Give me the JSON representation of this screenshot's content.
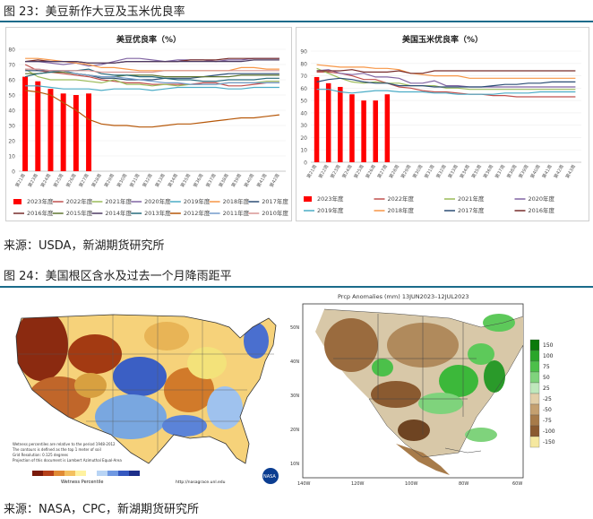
{
  "fig23": {
    "caption": "图 23：美豆新作大豆及玉米优良率",
    "source": "来源：USDA，新湖期货研究所"
  },
  "fig24": {
    "caption": "图 24：美国根区含水及过去一个月降雨距平",
    "source": "来源：NASA，CPC，新湖期货研究所"
  },
  "chart_data": [
    {
      "type": "bar+line",
      "title": "美豆优良率（%）",
      "ylim": [
        0,
        80
      ],
      "yticks": [
        "0",
        "10",
        "20",
        "30",
        "40",
        "50",
        "60",
        "70",
        "80"
      ],
      "categories": [
        "第21周",
        "第23周",
        "第24周",
        "第25周",
        "第26周",
        "第27周",
        "第28周",
        "第29周",
        "第30周",
        "第31周",
        "第32周",
        "第33周",
        "第34周",
        "第35周",
        "第36周",
        "第37周",
        "第38周",
        "第39周",
        "第40周",
        "第41周",
        "第42周"
      ],
      "bars": {
        "name": "2023年度",
        "color": "#ff0000",
        "values": [
          62,
          59,
          54,
          51,
          50,
          51
        ]
      },
      "series": [
        {
          "name": "2022年度",
          "color": "#c0504d",
          "values": [
            70,
            66,
            65,
            64,
            63,
            62,
            60,
            59,
            58,
            58,
            57,
            57,
            57,
            57,
            58,
            58,
            56,
            56,
            57,
            58,
            58
          ]
        },
        {
          "name": "2021年度",
          "color": "#9bbb59",
          "values": [
            67,
            62,
            60,
            60,
            60,
            59,
            58,
            60,
            57,
            57,
            56,
            57,
            56,
            57,
            57,
            57,
            58,
            58,
            58,
            59,
            59
          ]
        },
        {
          "name": "2020年度",
          "color": "#8064a2",
          "values": [
            72,
            72,
            71,
            70,
            71,
            69,
            70,
            72,
            74,
            74,
            73,
            72,
            73,
            73,
            73,
            72,
            73,
            73,
            74,
            74,
            74
          ]
        },
        {
          "name": "2019年度",
          "color": "#4bacc6",
          "values": [
            56,
            56,
            55,
            54,
            54,
            54,
            53,
            54,
            54,
            54,
            53,
            54,
            55,
            55,
            55,
            55,
            54,
            54,
            55,
            55,
            55
          ]
        },
        {
          "name": "2018年度",
          "color": "#f79646",
          "values": [
            74,
            74,
            73,
            72,
            71,
            70,
            68,
            68,
            67,
            66,
            66,
            66,
            66,
            66,
            66,
            66,
            66,
            68,
            68,
            67,
            67
          ]
        },
        {
          "name": "2017年度",
          "color": "#2c4d75",
          "values": [
            66,
            66,
            66,
            66,
            64,
            63,
            61,
            61,
            60,
            60,
            60,
            61,
            61,
            61,
            62,
            63,
            64,
            64,
            64,
            64,
            64
          ]
        },
        {
          "name": "2016年度",
          "color": "#772c2a",
          "values": [
            72,
            73,
            72,
            72,
            72,
            71,
            71,
            71,
            72,
            72,
            72,
            72,
            72,
            73,
            73,
            73,
            74,
            74,
            74,
            74,
            74
          ]
        },
        {
          "name": "2015年度",
          "color": "#5f7530",
          "values": [
            64,
            64,
            65,
            65,
            64,
            63,
            62,
            62,
            63,
            63,
            63,
            62,
            62,
            62,
            62,
            62,
            62,
            63,
            63,
            63,
            63
          ]
        },
        {
          "name": "2014年度",
          "color": "#4d3b62",
          "values": [
            72,
            72,
            72,
            72,
            72,
            71,
            71,
            71,
            72,
            72,
            72,
            72,
            72,
            72,
            72,
            72,
            72,
            72,
            73,
            73,
            73
          ]
        },
        {
          "name": "2013年度",
          "color": "#276a7c",
          "values": [
            62,
            64,
            65,
            66,
            66,
            67,
            64,
            63,
            63,
            62,
            62,
            61,
            60,
            60,
            59,
            59,
            60,
            60,
            60,
            61,
            61
          ]
        },
        {
          "name": "2012年度",
          "color": "#b65708",
          "values": [
            53,
            52,
            50,
            45,
            40,
            34,
            31,
            30,
            30,
            29,
            29,
            30,
            31,
            31,
            32,
            33,
            34,
            35,
            35,
            36,
            37
          ]
        },
        {
          "name": "2011年度",
          "color": "#729aca",
          "values": [
            67,
            67,
            66,
            66,
            64,
            63,
            62,
            62,
            61,
            60,
            59,
            58,
            58,
            57,
            57,
            57,
            58,
            58,
            58,
            58,
            58
          ]
        },
        {
          "name": "2010年度",
          "color": "#d99694",
          "values": [
            67,
            67,
            66,
            66,
            66,
            66,
            65,
            65,
            65,
            65,
            65,
            66,
            66,
            66,
            66,
            66,
            66,
            66,
            66,
            66,
            66
          ]
        }
      ]
    },
    {
      "type": "bar+line",
      "title": "美国玉米优良率（%）",
      "ylim": [
        0,
        90
      ],
      "yticks": [
        "0",
        "10",
        "20",
        "30",
        "40",
        "50",
        "60",
        "70",
        "80",
        "90"
      ],
      "categories": [
        "第21周",
        "第22周",
        "第23周",
        "第24周",
        "第25周",
        "第26周",
        "第27周",
        "第28周",
        "第29周",
        "第30周",
        "第31周",
        "第32周",
        "第33周",
        "第34周",
        "第35周",
        "第36周",
        "第37周",
        "第38周",
        "第39周",
        "第40周",
        "第41周",
        "第42周",
        "第43周"
      ],
      "bars": {
        "name": "2023年度",
        "color": "#ff0000",
        "values": [
          69,
          64,
          61,
          55,
          50,
          50,
          55
        ]
      },
      "series": [
        {
          "name": "2022年度",
          "color": "#c0504d",
          "values": [
            73,
            73,
            72,
            70,
            67,
            67,
            64,
            61,
            60,
            58,
            57,
            57,
            56,
            55,
            55,
            54,
            54,
            53,
            53,
            53,
            53,
            53,
            53
          ]
        },
        {
          "name": "2021年度",
          "color": "#9bbb59",
          "values": [
            76,
            72,
            68,
            65,
            64,
            65,
            64,
            64,
            62,
            62,
            62,
            60,
            60,
            59,
            59,
            59,
            59,
            59,
            59,
            59,
            59,
            59,
            59
          ]
        },
        {
          "name": "2020年度",
          "color": "#8064a2",
          "values": [
            74,
            75,
            72,
            71,
            72,
            69,
            69,
            68,
            64,
            64,
            66,
            62,
            62,
            61,
            61,
            61,
            61,
            61,
            61,
            61,
            61,
            61,
            61
          ]
        },
        {
          "name": "2019年度",
          "color": "#4bacc6",
          "values": [
            59,
            59,
            57,
            56,
            57,
            58,
            58,
            57,
            57,
            57,
            56,
            56,
            55,
            55,
            55,
            55,
            56,
            56,
            56,
            57,
            57,
            57,
            57
          ]
        },
        {
          "name": "2018年度",
          "color": "#f79646",
          "values": [
            79,
            78,
            77,
            77,
            77,
            76,
            76,
            75,
            72,
            71,
            70,
            70,
            70,
            68,
            68,
            68,
            68,
            68,
            68,
            68,
            68,
            68,
            68
          ]
        },
        {
          "name": "2017年度",
          "color": "#2c4d75",
          "values": [
            65,
            67,
            68,
            67,
            65,
            64,
            64,
            62,
            62,
            62,
            61,
            61,
            61,
            61,
            61,
            62,
            63,
            63,
            64,
            64,
            65,
            65,
            65
          ]
        },
        {
          "name": "2016年度",
          "color": "#772c2a",
          "values": [
            74,
            74,
            74,
            75,
            73,
            73,
            73,
            74,
            72,
            72,
            74,
            74,
            74,
            74,
            74,
            74,
            74,
            74,
            74,
            74,
            74,
            74,
            74
          ]
        }
      ]
    }
  ],
  "maps": {
    "wetness": {
      "title": "Wetness Percentile",
      "credit": "NASA",
      "notes": [
        "Wetness percentiles are relative to the period 1948-2012",
        "The contours is defined as the top 1 meter of soil",
        "Grid Resolution: 0.125 degrees",
        "Projection of this document is Lambert Azimuthal Equal-Area"
      ],
      "url": "http://nasagrace.unl.edu"
    },
    "precip": {
      "title": "Prcp Anomalies (mm) 13JUN2023–12JUL2023",
      "legend": [
        "150",
        "100",
        "75",
        "50",
        "25",
        "-25",
        "-50",
        "-75",
        "-100",
        "-150"
      ],
      "lat_labels": [
        "50N",
        "40N",
        "30N",
        "20N",
        "10N"
      ],
      "lon_labels": [
        "140W",
        "120W",
        "100W",
        "80W",
        "60W"
      ]
    }
  }
}
